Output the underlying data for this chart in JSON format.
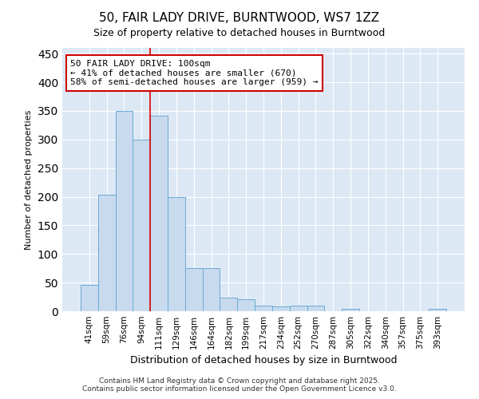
{
  "title_line1": "50, FAIR LADY DRIVE, BURNTWOOD, WS7 1ZZ",
  "title_line2": "Size of property relative to detached houses in Burntwood",
  "xlabel": "Distribution of detached houses by size in Burntwood",
  "ylabel": "Number of detached properties",
  "footer_line1": "Contains HM Land Registry data © Crown copyright and database right 2025.",
  "footer_line2": "Contains public sector information licensed under the Open Government Licence v3.0.",
  "bin_labels": [
    "41sqm",
    "59sqm",
    "76sqm",
    "94sqm",
    "111sqm",
    "129sqm",
    "146sqm",
    "164sqm",
    "182sqm",
    "199sqm",
    "217sqm",
    "234sqm",
    "252sqm",
    "270sqm",
    "287sqm",
    "305sqm",
    "322sqm",
    "340sqm",
    "357sqm",
    "375sqm",
    "393sqm"
  ],
  "bar_values": [
    46,
    204,
    350,
    300,
    341,
    200,
    75,
    75,
    24,
    21,
    10,
    8,
    10,
    10,
    0,
    4,
    0,
    0,
    0,
    0,
    4
  ],
  "bar_color": "#c8daee",
  "bar_edge_color": "#6aaad4",
  "property_label": "50 FAIR LADY DRIVE: 100sqm",
  "pct_smaller": 41,
  "n_smaller": 670,
  "pct_larger_semi": 58,
  "n_larger_semi": 959,
  "vline_color": "#dd0000",
  "annotation_box_color": "#cc0000",
  "vline_bin_index": 3.5,
  "ylim": [
    0,
    460
  ],
  "yticks": [
    0,
    50,
    100,
    150,
    200,
    250,
    300,
    350,
    400,
    450
  ],
  "bg_color": "#ffffff",
  "plot_bg_color": "#dde8f5",
  "grid_color": "#ffffff",
  "title_fontsize": 11,
  "subtitle_fontsize": 9,
  "ylabel_fontsize": 8,
  "xlabel_fontsize": 9,
  "tick_fontsize": 7.5,
  "footer_fontsize": 6.5,
  "ann_fontsize": 8
}
